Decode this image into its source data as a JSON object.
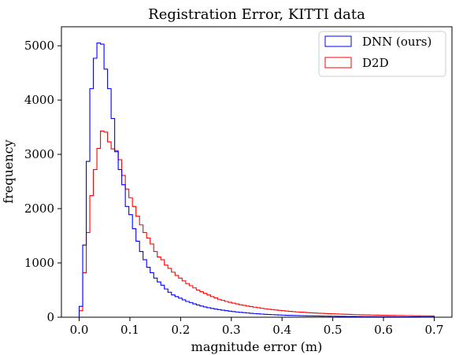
{
  "chart_data": {
    "type": "histogram",
    "title": "Registration Error, KITTI data",
    "xlabel": "magnitude error (m)",
    "ylabel": "frequency",
    "xlim": [
      -0.035,
      0.735
    ],
    "ylim": [
      0,
      5350
    ],
    "xticks": [
      "0.0",
      "0.1",
      "0.2",
      "0.3",
      "0.4",
      "0.5",
      "0.6",
      "0.7"
    ],
    "xtick_values": [
      0.0,
      0.1,
      0.2,
      0.3,
      0.4,
      0.5,
      0.6,
      0.7
    ],
    "yticks": [
      "0",
      "1000",
      "2000",
      "3000",
      "4000",
      "5000"
    ],
    "ytick_values": [
      0,
      1000,
      2000,
      3000,
      4000,
      5000
    ],
    "legend_position": "top-right",
    "bin_start": 0.0,
    "bin_width": 0.007,
    "series": [
      {
        "name": "DNN (ours)",
        "color": "#0000ff",
        "values": [
          200,
          1330,
          2870,
          4210,
          4770,
          5050,
          5030,
          4570,
          4210,
          3660,
          3050,
          2720,
          2440,
          2040,
          1890,
          1630,
          1400,
          1210,
          1060,
          920,
          820,
          720,
          650,
          590,
          520,
          460,
          410,
          380,
          350,
          320,
          290,
          270,
          245,
          225,
          205,
          190,
          175,
          162,
          150,
          140,
          130,
          120,
          112,
          104,
          96,
          90,
          84,
          78,
          72,
          67,
          62,
          58,
          54,
          50,
          47,
          44,
          41,
          38,
          36,
          34,
          32,
          30,
          28,
          26,
          25,
          24,
          23,
          22,
          21,
          20,
          19,
          18,
          17,
          16,
          15,
          14,
          14,
          13,
          12,
          12,
          11,
          11,
          10,
          10,
          9,
          9,
          8,
          8,
          8,
          7,
          7,
          7,
          6,
          6,
          6,
          6,
          5,
          5,
          5,
          5
        ]
      },
      {
        "name": "D2D",
        "color": "#ff0000",
        "values": [
          120,
          820,
          1560,
          2240,
          2720,
          3110,
          3430,
          3410,
          3230,
          3100,
          3070,
          2900,
          2610,
          2360,
          2200,
          2040,
          1860,
          1700,
          1560,
          1460,
          1350,
          1210,
          1110,
          1060,
          960,
          900,
          830,
          770,
          720,
          670,
          620,
          580,
          540,
          500,
          470,
          440,
          410,
          380,
          355,
          330,
          310,
          290,
          275,
          260,
          245,
          230,
          218,
          206,
          195,
          185,
          175,
          165,
          156,
          148,
          140,
          133,
          126,
          120,
          114,
          108,
          103,
          98,
          93,
          89,
          85,
          81,
          77,
          74,
          71,
          68,
          65,
          62,
          60,
          57,
          55,
          53,
          51,
          49,
          47,
          45,
          43,
          42,
          40,
          39,
          37,
          36,
          35,
          34,
          33,
          32,
          31,
          30,
          29,
          28,
          27,
          26,
          25,
          25,
          24,
          23
        ]
      }
    ]
  }
}
